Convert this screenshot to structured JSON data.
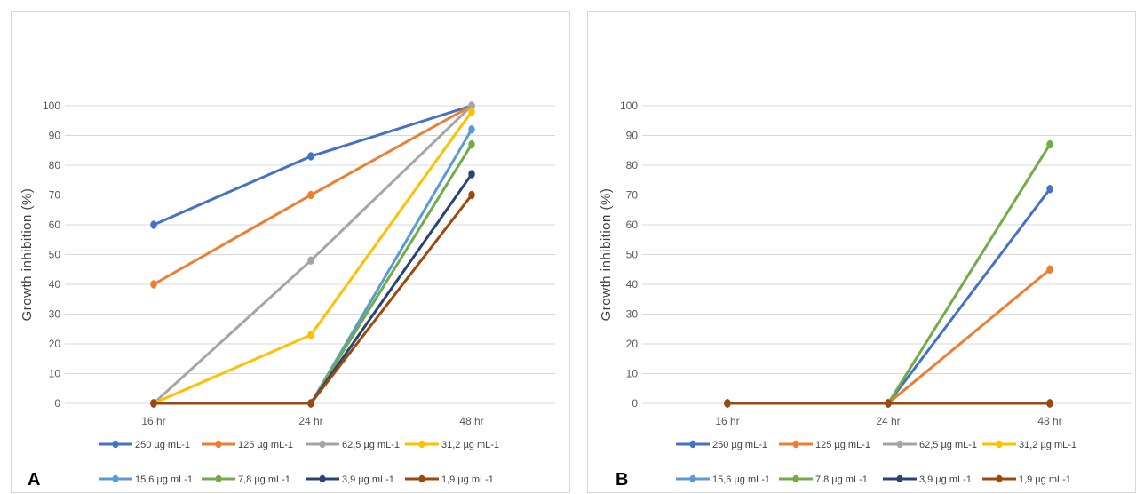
{
  "chart_data": [
    {
      "type": "line",
      "panel_label": "A",
      "ylabel": "Growth inhibition (%)",
      "xlabel": "",
      "categories": [
        "16 hr",
        "24 hr",
        "48 hr"
      ],
      "yticks": [
        "0",
        "10",
        "20",
        "30",
        "40",
        "50",
        "60",
        "70",
        "80",
        "90",
        "100"
      ],
      "ylim": [
        0,
        100
      ],
      "grid": true,
      "legend_position": "bottom",
      "series": [
        {
          "name": "250 µg mL-1",
          "color": "#4472C4",
          "values": [
            60,
            83,
            100
          ]
        },
        {
          "name": "125 µg mL-1",
          "color": "#ED7D31",
          "values": [
            40,
            70,
            100
          ]
        },
        {
          "name": "62,5 µg mL-1",
          "color": "#A5A5A5",
          "values": [
            0,
            48,
            100
          ]
        },
        {
          "name": "31,2 µg mL-1",
          "color": "#FFC000",
          "values": [
            0,
            23,
            98
          ]
        },
        {
          "name": "15,6 µg mL-1",
          "color": "#5B9BD5",
          "values": [
            0,
            0,
            92
          ]
        },
        {
          "name": "7,8 µg mL-1",
          "color": "#70AD47",
          "values": [
            0,
            0,
            87
          ]
        },
        {
          "name": "3,9 µg mL-1",
          "color": "#264478",
          "values": [
            0,
            0,
            77
          ]
        },
        {
          "name": "1,9 µg mL-1",
          "color": "#9E480E",
          "values": [
            0,
            0,
            70
          ]
        }
      ]
    },
    {
      "type": "line",
      "panel_label": "B",
      "ylabel": "Growth inhibition (%)",
      "xlabel": "",
      "categories": [
        "16 hr",
        "24 hr",
        "48 hr"
      ],
      "yticks": [
        "0",
        "10",
        "20",
        "30",
        "40",
        "50",
        "60",
        "70",
        "80",
        "90",
        "100"
      ],
      "ylim": [
        0,
        100
      ],
      "grid": true,
      "legend_position": "bottom",
      "series": [
        {
          "name": "250 µg mL-1",
          "color": "#4472C4",
          "values": [
            0,
            0,
            72
          ]
        },
        {
          "name": "125 µg mL-1",
          "color": "#ED7D31",
          "values": [
            0,
            0,
            45
          ]
        },
        {
          "name": "62,5 µg mL-1",
          "color": "#A5A5A5",
          "values": [
            0,
            0,
            0
          ]
        },
        {
          "name": "31,2 µg mL-1",
          "color": "#FFC000",
          "values": [
            0,
            0,
            0
          ]
        },
        {
          "name": "15,6 µg mL-1",
          "color": "#5B9BD5",
          "values": [
            0,
            0,
            0
          ]
        },
        {
          "name": "7,8 µg mL-1",
          "color": "#70AD47",
          "values": [
            0,
            0,
            87
          ]
        },
        {
          "name": "3,9 µg mL-1",
          "color": "#264478",
          "values": [
            0,
            0,
            0
          ]
        },
        {
          "name": "1,9 µg mL-1",
          "color": "#9E480E",
          "values": [
            0,
            0,
            0
          ]
        }
      ]
    }
  ]
}
